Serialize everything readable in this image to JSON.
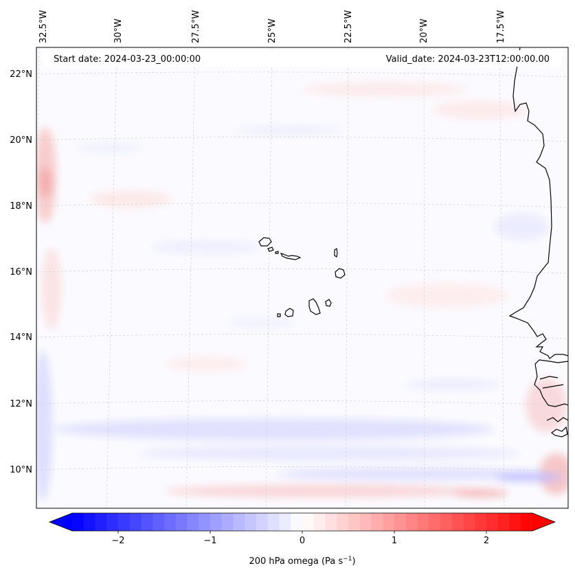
{
  "header": {
    "start_date": "Start date: 2024-03-23_00:00:00",
    "valid_date": "Valid_date: 2024-03-23T12:00:00.00"
  },
  "map": {
    "projection": "regional conic",
    "lon_labels": [
      "32.5°W",
      "30°W",
      "27.5°W",
      "25°W",
      "22.5°W",
      "20°W",
      "17.5°W"
    ],
    "lat_labels": [
      "22°N",
      "20°N",
      "18°N",
      "16°N",
      "14°N",
      "12°N",
      "10°N"
    ],
    "field": "200 hPa vertical velocity, weak and mostly near zero; faint negative (blue) bands south of 12°N and west of 32°W, faint positive (red) patches north of 17°N and in the far south-east"
  },
  "colorbar": {
    "label": "200 hPa omega (Pa s",
    "label_exponent": "−1",
    "label_suffix": ")",
    "ticks": [
      "−2",
      "−1",
      "0",
      "1",
      "2"
    ],
    "tick_values": [
      -2,
      -1,
      0,
      1,
      2
    ],
    "range": [
      -2.5,
      2.5
    ],
    "extend": "both",
    "colors": {
      "min": "#0000ff",
      "mid": "#ffffff",
      "max": "#ff0000"
    }
  }
}
